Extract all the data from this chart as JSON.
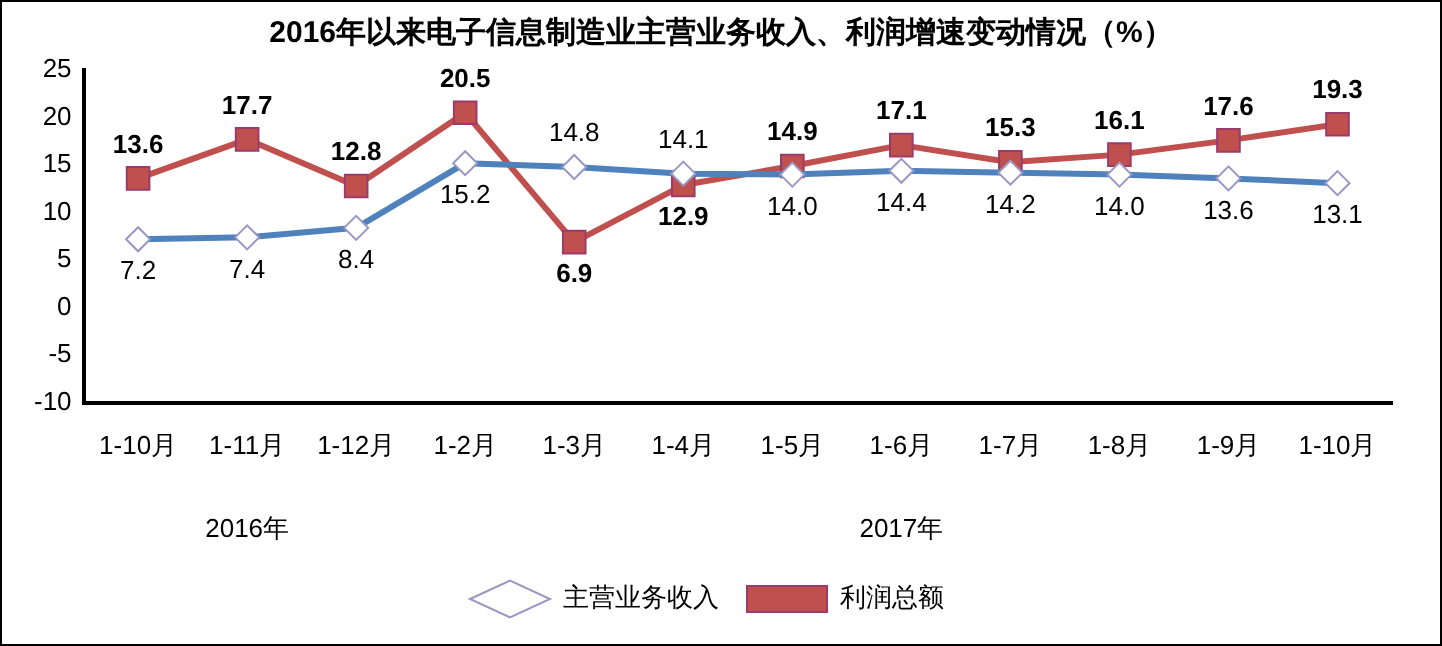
{
  "chart_data": {
    "type": "line",
    "title": "2016年以来电子信息制造业主营业务收入、利润增速变动情况（%）",
    "categories": [
      "1-10月",
      "1-11月",
      "1-12月",
      "1-2月",
      "1-3月",
      "1-4月",
      "1-5月",
      "1-6月",
      "1-7月",
      "1-8月",
      "1-9月",
      "1-10月"
    ],
    "series": [
      {
        "name": "主营业务收入",
        "color": "#4f81bd",
        "marker": "diamond",
        "values": [
          7.2,
          7.4,
          8.4,
          15.2,
          14.8,
          14.1,
          14.0,
          14.4,
          14.2,
          14.0,
          13.6,
          13.1
        ],
        "value_labels": [
          "7.2",
          "7.4",
          "8.4",
          "15.2",
          "14.8",
          "14.1",
          "14.0",
          "14.4",
          "14.2",
          "14.0",
          "13.6",
          "13.1"
        ]
      },
      {
        "name": "利润总额",
        "color": "#c0504d",
        "marker": "square",
        "values": [
          13.6,
          17.7,
          12.8,
          20.5,
          6.9,
          12.9,
          14.9,
          17.1,
          15.3,
          16.1,
          17.6,
          19.3
        ],
        "value_labels": [
          "13.6",
          "17.7",
          "12.8",
          "20.5",
          "6.9",
          "12.9",
          "14.9",
          "17.1",
          "15.3",
          "16.1",
          "17.6",
          "19.3"
        ]
      }
    ],
    "ylim": [
      -10,
      25
    ],
    "yticks": [
      -10,
      -5,
      0,
      5,
      10,
      15,
      20,
      25
    ],
    "grid": false,
    "legend": "bottom",
    "annotations": [
      "2016年",
      "2017年"
    ]
  }
}
